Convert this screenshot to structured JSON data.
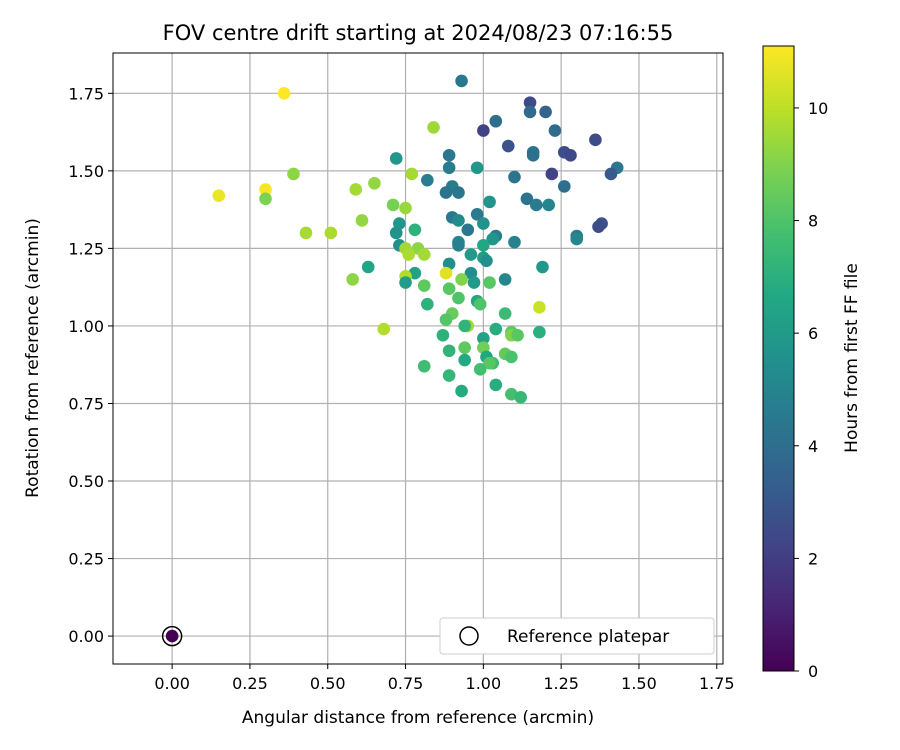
{
  "chart_data": {
    "type": "scatter",
    "title": "FOV centre drift starting at 2024/08/23 07:16:55",
    "xlabel": "Angular distance from reference (arcmin)",
    "ylabel": "Rotation from reference (arcmin)",
    "xlim": [
      -0.19,
      1.77
    ],
    "ylim": [
      -0.09,
      1.88
    ],
    "xticks": [
      "0.00",
      "0.25",
      "0.50",
      "0.75",
      "1.00",
      "1.25",
      "1.50",
      "1.75"
    ],
    "yticks": [
      "0.00",
      "0.25",
      "0.50",
      "0.75",
      "1.00",
      "1.25",
      "1.50",
      "1.75"
    ],
    "grid": true,
    "legend": {
      "label": "Reference platepar",
      "position": "lower-right"
    },
    "reference_point": {
      "x": 0.0,
      "y": 0.0,
      "c": 0.0
    },
    "colorbar": {
      "label": "Hours from first FF file",
      "min": 0,
      "max": 11.1,
      "ticks": [
        "0",
        "2",
        "4",
        "6",
        "8",
        "10"
      ],
      "colormap": "viridis"
    },
    "points": [
      {
        "x": 0.93,
        "y": 1.79,
        "c": 4.4
      },
      {
        "x": 1.15,
        "y": 1.72,
        "c": 2.5
      },
      {
        "x": 1.2,
        "y": 1.69,
        "c": 3.6
      },
      {
        "x": 1.15,
        "y": 1.69,
        "c": 3.8
      },
      {
        "x": 1.04,
        "y": 1.66,
        "c": 4.0
      },
      {
        "x": 1.23,
        "y": 1.63,
        "c": 3.9
      },
      {
        "x": 1.0,
        "y": 1.63,
        "c": 2.2
      },
      {
        "x": 1.36,
        "y": 1.6,
        "c": 2.5
      },
      {
        "x": 1.08,
        "y": 1.58,
        "c": 2.8
      },
      {
        "x": 1.16,
        "y": 1.56,
        "c": 4.3
      },
      {
        "x": 1.26,
        "y": 1.56,
        "c": 2.6
      },
      {
        "x": 1.28,
        "y": 1.55,
        "c": 2.4
      },
      {
        "x": 1.16,
        "y": 1.55,
        "c": 4.1
      },
      {
        "x": 0.89,
        "y": 1.55,
        "c": 4.4
      },
      {
        "x": 0.72,
        "y": 1.54,
        "c": 5.8
      },
      {
        "x": 1.43,
        "y": 1.51,
        "c": 4.4
      },
      {
        "x": 0.89,
        "y": 1.51,
        "c": 4.6
      },
      {
        "x": 0.98,
        "y": 1.51,
        "c": 5.8
      },
      {
        "x": 1.22,
        "y": 1.49,
        "c": 2.2
      },
      {
        "x": 1.41,
        "y": 1.49,
        "c": 3.1
      },
      {
        "x": 0.77,
        "y": 1.49,
        "c": 9.6
      },
      {
        "x": 1.1,
        "y": 1.48,
        "c": 4.2
      },
      {
        "x": 0.82,
        "y": 1.47,
        "c": 4.7
      },
      {
        "x": 1.26,
        "y": 1.45,
        "c": 4.0
      },
      {
        "x": 0.9,
        "y": 1.45,
        "c": 4.6
      },
      {
        "x": 0.88,
        "y": 1.43,
        "c": 4.2
      },
      {
        "x": 0.92,
        "y": 1.43,
        "c": 4.3
      },
      {
        "x": 1.14,
        "y": 1.41,
        "c": 4.2
      },
      {
        "x": 1.17,
        "y": 1.39,
        "c": 4.6
      },
      {
        "x": 1.21,
        "y": 1.39,
        "c": 5.0
      },
      {
        "x": 1.02,
        "y": 1.4,
        "c": 5.7
      },
      {
        "x": 0.71,
        "y": 1.39,
        "c": 8.8
      },
      {
        "x": 0.75,
        "y": 1.38,
        "c": 9.4
      },
      {
        "x": 0.98,
        "y": 1.36,
        "c": 4.5
      },
      {
        "x": 0.9,
        "y": 1.35,
        "c": 4.4
      },
      {
        "x": 0.92,
        "y": 1.34,
        "c": 5.3
      },
      {
        "x": 0.73,
        "y": 1.33,
        "c": 5.8
      },
      {
        "x": 1.0,
        "y": 1.33,
        "c": 5.6
      },
      {
        "x": 0.95,
        "y": 1.31,
        "c": 4.4
      },
      {
        "x": 0.78,
        "y": 1.31,
        "c": 7.1
      },
      {
        "x": 0.72,
        "y": 1.3,
        "c": 5.6
      },
      {
        "x": 1.3,
        "y": 1.29,
        "c": 4.5
      },
      {
        "x": 1.3,
        "y": 1.28,
        "c": 5.1
      },
      {
        "x": 1.38,
        "y": 1.33,
        "c": 2.8
      },
      {
        "x": 1.37,
        "y": 1.32,
        "c": 2.6
      },
      {
        "x": 1.04,
        "y": 1.29,
        "c": 4.6
      },
      {
        "x": 1.03,
        "y": 1.28,
        "c": 5.8
      },
      {
        "x": 0.92,
        "y": 1.27,
        "c": 5.0
      },
      {
        "x": 0.92,
        "y": 1.26,
        "c": 4.8
      },
      {
        "x": 1.1,
        "y": 1.27,
        "c": 4.9
      },
      {
        "x": 0.73,
        "y": 1.26,
        "c": 5.5
      },
      {
        "x": 1.0,
        "y": 1.26,
        "c": 6.6
      },
      {
        "x": 0.75,
        "y": 1.25,
        "c": 9.5
      },
      {
        "x": 0.79,
        "y": 1.25,
        "c": 9.2
      },
      {
        "x": 0.81,
        "y": 1.23,
        "c": 9.6
      },
      {
        "x": 0.76,
        "y": 1.23,
        "c": 9.7
      },
      {
        "x": 0.96,
        "y": 1.23,
        "c": 6.0
      },
      {
        "x": 1.0,
        "y": 1.22,
        "c": 6.2
      },
      {
        "x": 1.01,
        "y": 1.21,
        "c": 5.5
      },
      {
        "x": 0.89,
        "y": 1.2,
        "c": 5.5
      },
      {
        "x": 0.63,
        "y": 1.19,
        "c": 6.5
      },
      {
        "x": 1.19,
        "y": 1.19,
        "c": 5.9
      },
      {
        "x": 0.96,
        "y": 1.17,
        "c": 5.4
      },
      {
        "x": 0.78,
        "y": 1.17,
        "c": 6.3
      },
      {
        "x": 0.88,
        "y": 1.17,
        "c": 10.6
      },
      {
        "x": 0.93,
        "y": 1.15,
        "c": 9.0
      },
      {
        "x": 1.07,
        "y": 1.15,
        "c": 5.1
      },
      {
        "x": 0.58,
        "y": 1.15,
        "c": 9.2
      },
      {
        "x": 0.75,
        "y": 1.16,
        "c": 9.8
      },
      {
        "x": 0.75,
        "y": 1.14,
        "c": 6.1
      },
      {
        "x": 0.97,
        "y": 1.14,
        "c": 6.0
      },
      {
        "x": 1.02,
        "y": 1.14,
        "c": 8.2
      },
      {
        "x": 0.81,
        "y": 1.13,
        "c": 8.3
      },
      {
        "x": 0.89,
        "y": 1.12,
        "c": 8.2
      },
      {
        "x": 0.98,
        "y": 1.08,
        "c": 6.6
      },
      {
        "x": 0.99,
        "y": 1.07,
        "c": 8.0
      },
      {
        "x": 0.92,
        "y": 1.09,
        "c": 8.0
      },
      {
        "x": 0.82,
        "y": 1.07,
        "c": 7.1
      },
      {
        "x": 1.18,
        "y": 1.06,
        "c": 10.2
      },
      {
        "x": 1.07,
        "y": 1.04,
        "c": 7.5
      },
      {
        "x": 0.9,
        "y": 1.04,
        "c": 8.5
      },
      {
        "x": 0.88,
        "y": 1.02,
        "c": 8.1
      },
      {
        "x": 0.95,
        "y": 1.0,
        "c": 9.5
      },
      {
        "x": 0.94,
        "y": 1.0,
        "c": 7.2
      },
      {
        "x": 0.68,
        "y": 0.99,
        "c": 9.8
      },
      {
        "x": 1.04,
        "y": 0.99,
        "c": 6.9
      },
      {
        "x": 1.09,
        "y": 0.98,
        "c": 8.3
      },
      {
        "x": 1.18,
        "y": 0.98,
        "c": 7.0
      },
      {
        "x": 1.09,
        "y": 0.97,
        "c": 9.0
      },
      {
        "x": 0.87,
        "y": 0.97,
        "c": 7.1
      },
      {
        "x": 1.11,
        "y": 0.97,
        "c": 8.2
      },
      {
        "x": 1.0,
        "y": 0.96,
        "c": 6.3
      },
      {
        "x": 0.94,
        "y": 0.93,
        "c": 8.3
      },
      {
        "x": 1.0,
        "y": 0.93,
        "c": 8.7
      },
      {
        "x": 0.89,
        "y": 0.92,
        "c": 7.2
      },
      {
        "x": 1.07,
        "y": 0.91,
        "c": 8.4
      },
      {
        "x": 1.01,
        "y": 0.9,
        "c": 6.6
      },
      {
        "x": 1.09,
        "y": 0.9,
        "c": 7.9
      },
      {
        "x": 0.94,
        "y": 0.89,
        "c": 6.7
      },
      {
        "x": 1.03,
        "y": 0.88,
        "c": 7.5
      },
      {
        "x": 1.02,
        "y": 0.88,
        "c": 8.2
      },
      {
        "x": 0.81,
        "y": 0.87,
        "c": 7.6
      },
      {
        "x": 0.99,
        "y": 0.86,
        "c": 7.7
      },
      {
        "x": 0.89,
        "y": 0.84,
        "c": 7.3
      },
      {
        "x": 1.04,
        "y": 0.81,
        "c": 6.9
      },
      {
        "x": 0.93,
        "y": 0.79,
        "c": 6.8
      },
      {
        "x": 1.09,
        "y": 0.78,
        "c": 7.8
      },
      {
        "x": 1.12,
        "y": 0.77,
        "c": 7.4
      },
      {
        "x": 0.36,
        "y": 1.75,
        "c": 11.1
      },
      {
        "x": 0.84,
        "y": 1.64,
        "c": 9.5
      },
      {
        "x": 0.39,
        "y": 1.49,
        "c": 9.2
      },
      {
        "x": 0.65,
        "y": 1.46,
        "c": 9.3
      },
      {
        "x": 0.59,
        "y": 1.44,
        "c": 9.6
      },
      {
        "x": 0.3,
        "y": 1.44,
        "c": 11.0
      },
      {
        "x": 0.15,
        "y": 1.42,
        "c": 10.8
      },
      {
        "x": 0.3,
        "y": 1.41,
        "c": 8.9
      },
      {
        "x": 0.61,
        "y": 1.34,
        "c": 9.3
      },
      {
        "x": 0.43,
        "y": 1.3,
        "c": 9.6
      },
      {
        "x": 0.51,
        "y": 1.3,
        "c": 9.7
      }
    ]
  }
}
